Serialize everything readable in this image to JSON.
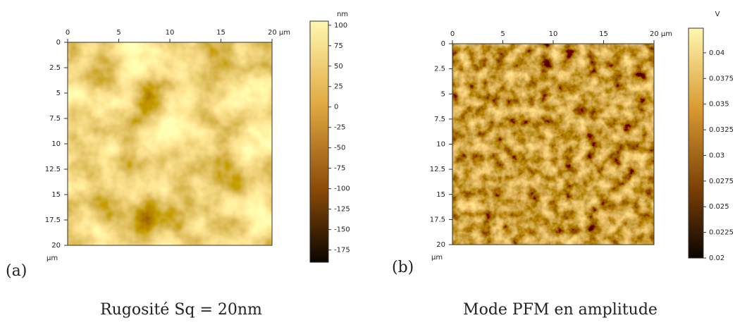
{
  "panels": [
    {
      "label": "(a)",
      "caption": "Rugosité Sq = 20nm",
      "axis_unit": "µm",
      "xlim": [
        0,
        20
      ],
      "ylim": [
        0,
        20
      ],
      "xticks": [
        0,
        5,
        10,
        15,
        {
          "value": 20,
          "label": "20 µm"
        }
      ],
      "yticks": [
        0,
        2.5,
        5,
        7.5,
        10,
        12.5,
        15,
        17.5,
        20
      ],
      "colorbar": {
        "unit": "nm",
        "lim": [
          -190,
          105
        ],
        "ticks": [
          100,
          75,
          50,
          25,
          0,
          -25,
          -50,
          -75,
          -100,
          -125,
          -150,
          -175
        ]
      }
    },
    {
      "label": "(b)",
      "caption": "Mode PFM en amplitude",
      "axis_unit": "µm",
      "xlim": [
        0,
        20
      ],
      "ylim": [
        0,
        20
      ],
      "xticks": [
        0,
        5,
        10,
        15,
        {
          "value": 20,
          "label": "20 µm"
        }
      ],
      "yticks": [
        0,
        2.5,
        5,
        7.5,
        10,
        12.5,
        15,
        17.5,
        20
      ],
      "colorbar": {
        "unit": "V",
        "lim": [
          0.02,
          0.0424
        ],
        "ticks": [
          0.04,
          0.0375,
          0.035,
          0.0325,
          0.03,
          0.0275,
          0.025,
          0.0225,
          0.02
        ]
      }
    }
  ]
}
